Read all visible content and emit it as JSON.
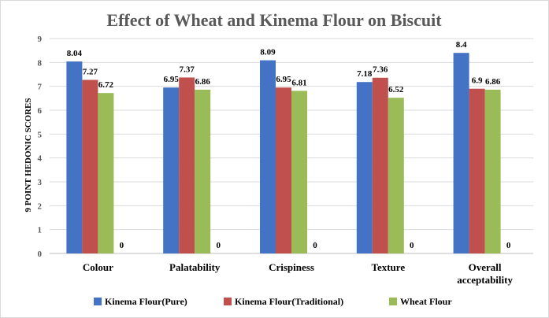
{
  "chart_data": {
    "type": "bar",
    "title": "Effect of Wheat and Kinema Flour on Biscuit",
    "xlabel": "",
    "ylabel": "9 POINT HEDONIC SCORES",
    "ylim": [
      0,
      9
    ],
    "yticks": [
      "0",
      "1",
      "2",
      "3",
      "4",
      "5",
      "6",
      "7",
      "8",
      "9"
    ],
    "categories": [
      [
        "Colour"
      ],
      [
        "Palatability"
      ],
      [
        "Crispiness"
      ],
      [
        "Texture"
      ],
      [
        "Overall",
        "acceptability"
      ]
    ],
    "series": [
      {
        "name": "Kinema Flour(Pure)",
        "color": "#4472c4",
        "values": [
          8.04,
          6.95,
          8.09,
          7.18,
          8.4
        ],
        "labels": [
          "8.04",
          "6.95",
          "8.09",
          "7.18",
          "8.4"
        ]
      },
      {
        "name": "Kinema Flour(Traditional)",
        "color": "#c0504d",
        "values": [
          7.27,
          7.37,
          6.95,
          7.36,
          6.9
        ],
        "labels": [
          "7.27",
          "7.37",
          "6.95",
          "7.36",
          "6.9"
        ]
      },
      {
        "name": "Wheat Flour",
        "color": "#9bbb59",
        "values": [
          6.72,
          6.86,
          6.81,
          6.52,
          6.86
        ],
        "labels": [
          "6.72",
          "6.86",
          "6.81",
          "6.52",
          "6.86"
        ]
      },
      {
        "name": "",
        "color": "#8064a2",
        "values": [
          0,
          0,
          0,
          0,
          0
        ],
        "labels": [
          "0",
          "0",
          "0",
          "0",
          "0"
        ]
      }
    ],
    "grid": true,
    "legend": "bottom"
  }
}
